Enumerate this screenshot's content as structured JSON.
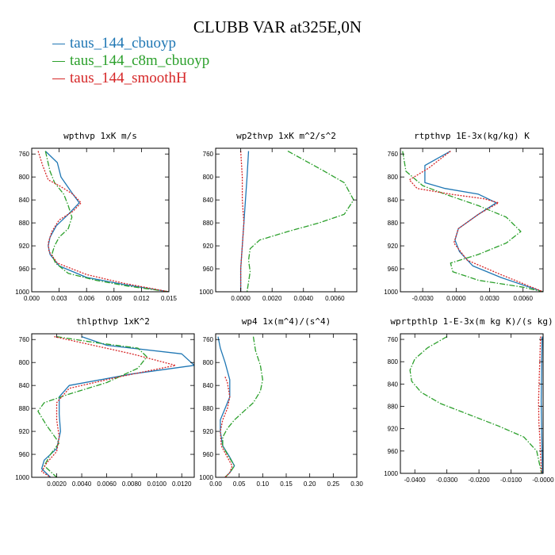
{
  "figure": {
    "title": "CLUBB VAR at325E,0N",
    "legend": [
      {
        "label": "taus_144_cbuoyp",
        "color": "#1f77b4"
      },
      {
        "label": "taus_144_c8m_cbuoyp",
        "color": "#2ca02c"
      },
      {
        "label": "taus_144_smoothH",
        "color": "#d62728"
      }
    ]
  },
  "chart_data": [
    {
      "type": "line",
      "title": "wpthvp  1xK m/s",
      "xlim": [
        0,
        0.015
      ],
      "ylim": [
        1000,
        750
      ],
      "xticks": [
        0.0,
        0.003,
        0.006,
        0.009,
        0.012,
        0.015
      ],
      "xtick_labels": [
        "0.000",
        "0.003",
        "0.006",
        "0.009",
        "0.012",
        "0.015"
      ],
      "yticks": [
        760,
        800,
        840,
        880,
        920,
        960,
        1000
      ],
      "series": [
        {
          "name": "taus_144_cbuoyp",
          "color": "#1f77b4",
          "style": "solid",
          "x": [
            0.0015,
            0.0028,
            0.0032,
            0.0045,
            0.0052,
            0.004,
            0.0027,
            0.002,
            0.0018,
            0.002,
            0.003,
            0.006,
            0.01,
            0.015
          ],
          "y": [
            755,
            775,
            800,
            830,
            845,
            865,
            885,
            905,
            920,
            935,
            955,
            975,
            987,
            1000
          ]
        },
        {
          "name": "taus_144_c8m_cbuoyp",
          "color": "#2ca02c",
          "style": "dashdot",
          "x": [
            0.0015,
            0.002,
            0.0025,
            0.0035,
            0.004,
            0.0044,
            0.004,
            0.003,
            0.0025,
            0.0022,
            0.0026,
            0.004,
            0.007,
            0.0105,
            0.015
          ],
          "y": [
            755,
            790,
            810,
            830,
            850,
            870,
            890,
            905,
            920,
            935,
            950,
            968,
            980,
            990,
            1000
          ]
        },
        {
          "name": "taus_144_smoothH",
          "color": "#d62728",
          "style": "dotted",
          "x": [
            0.0007,
            0.0012,
            0.0018,
            0.003,
            0.0045,
            0.0054,
            0.0045,
            0.003,
            0.0022,
            0.0018,
            0.0019,
            0.0028,
            0.006,
            0.01,
            0.015
          ],
          "y": [
            755,
            780,
            805,
            815,
            830,
            845,
            860,
            875,
            895,
            915,
            930,
            950,
            970,
            985,
            1000
          ]
        }
      ]
    },
    {
      "type": "line",
      "title": "wp2thvp  1xK m^2/s^2",
      "xlim": [
        -0.0016,
        0.0074
      ],
      "ylim": [
        1000,
        750
      ],
      "xticks": [
        0.0,
        0.002,
        0.004,
        0.006
      ],
      "xtick_labels": [
        "0.0000",
        "0.0020",
        "0.0040",
        "0.0060"
      ],
      "yticks": [
        760,
        800,
        840,
        880,
        920,
        960,
        1000
      ],
      "series": [
        {
          "name": "taus_144_cbuoyp",
          "color": "#1f77b4",
          "style": "solid",
          "x": [
            0.0005,
            0.0004,
            0.0003,
            0.0002,
            0.0001,
            0.0,
            0.0
          ],
          "y": [
            755,
            800,
            840,
            880,
            920,
            960,
            1000
          ]
        },
        {
          "name": "taus_144_c8m_cbuoyp",
          "color": "#2ca02c",
          "style": "dashdot",
          "x": [
            0.003,
            0.005,
            0.0066,
            0.0072,
            0.0066,
            0.005,
            0.003,
            0.0012,
            0.0006,
            0.0005,
            0.0006,
            0.0004
          ],
          "y": [
            755,
            785,
            810,
            840,
            865,
            880,
            895,
            910,
            925,
            945,
            965,
            1000
          ]
        },
        {
          "name": "taus_144_smoothH",
          "color": "#d62728",
          "style": "dotted",
          "x": [
            0.0,
            0.0001,
            0.0001,
            0.0002,
            0.0001,
            0.0,
            0.0
          ],
          "y": [
            755,
            800,
            840,
            880,
            920,
            960,
            1000
          ]
        }
      ]
    },
    {
      "type": "line",
      "title": "rtpthvp  1E-3x(kg/kg) K",
      "xlim": [
        -0.005,
        0.0078
      ],
      "ylim": [
        1000,
        750
      ],
      "xticks": [
        -0.003,
        0.0,
        0.003,
        0.006
      ],
      "xtick_labels": [
        "-0.0030",
        "0.0000",
        "0.0030",
        "0.0060"
      ],
      "yticks": [
        760,
        800,
        840,
        880,
        920,
        960,
        1000
      ],
      "series": [
        {
          "name": "taus_144_cbuoyp",
          "color": "#1f77b4",
          "style": "solid",
          "x": [
            -0.0005,
            -0.0028,
            -0.0028,
            -0.001,
            0.002,
            0.0036,
            0.002,
            0.0002,
            -0.0001,
            0.0003,
            0.0015,
            0.004,
            0.0078
          ],
          "y": [
            755,
            780,
            810,
            820,
            830,
            845,
            865,
            890,
            910,
            930,
            955,
            975,
            1000
          ]
        },
        {
          "name": "taus_144_c8m_cbuoyp",
          "color": "#2ca02c",
          "style": "dashdot",
          "x": [
            -0.0048,
            -0.0045,
            -0.003,
            -0.001,
            0.002,
            0.0045,
            0.0058,
            0.0045,
            0.002,
            -0.0005,
            -0.0003,
            0.002,
            0.006,
            0.0078
          ],
          "y": [
            755,
            790,
            815,
            830,
            850,
            870,
            895,
            915,
            935,
            950,
            965,
            980,
            992,
            1000
          ]
        },
        {
          "name": "taus_144_smoothH",
          "color": "#d62728",
          "style": "dotted",
          "x": [
            -0.0005,
            -0.0025,
            -0.0042,
            -0.0035,
            -0.0005,
            0.0025,
            0.0038,
            0.002,
            0.0002,
            -0.0002,
            0.001,
            0.004,
            0.0078
          ],
          "y": [
            755,
            785,
            805,
            820,
            830,
            838,
            845,
            865,
            890,
            915,
            945,
            970,
            1000
          ]
        }
      ]
    },
    {
      "type": "line",
      "title": "thlpthvp  1xK^2",
      "xlim": [
        0,
        0.013
      ],
      "ylim": [
        1000,
        750
      ],
      "xticks": [
        0.002,
        0.004,
        0.006,
        0.008,
        0.01,
        0.012
      ],
      "xtick_labels": [
        "0.0020",
        "0.0040",
        "0.0060",
        "0.0080",
        "0.0100",
        "0.0120"
      ],
      "yticks": [
        760,
        800,
        840,
        880,
        920,
        960,
        1000
      ],
      "series": [
        {
          "name": "taus_144_cbuoyp",
          "color": "#1f77b4",
          "style": "solid",
          "x": [
            0.004,
            0.006,
            0.012,
            0.013,
            0.008,
            0.003,
            0.0022,
            0.0022,
            0.0023,
            0.002,
            0.001,
            0.0008,
            0.0015
          ],
          "y": [
            755,
            770,
            785,
            805,
            820,
            840,
            860,
            890,
            920,
            950,
            970,
            985,
            1000
          ]
        },
        {
          "name": "taus_144_c8m_cbuoyp",
          "color": "#2ca02c",
          "style": "dashdot",
          "x": [
            0.002,
            0.005,
            0.0085,
            0.0092,
            0.0085,
            0.006,
            0.003,
            0.001,
            0.0005,
            0.0012,
            0.0022,
            0.0015,
            0.001,
            0.002
          ],
          "y": [
            755,
            765,
            775,
            790,
            810,
            835,
            855,
            870,
            885,
            910,
            940,
            960,
            980,
            1000
          ]
        },
        {
          "name": "taus_144_smoothH",
          "color": "#d62728",
          "style": "dotted",
          "x": [
            0.0018,
            0.008,
            0.0115,
            0.007,
            0.003,
            0.002,
            0.002,
            0.0022,
            0.002,
            0.0012,
            0.0008,
            0.0015
          ],
          "y": [
            755,
            785,
            805,
            825,
            845,
            870,
            900,
            930,
            955,
            975,
            990,
            1000
          ]
        }
      ]
    },
    {
      "type": "line",
      "title": "wp4  1x(m^4)/(s^4)",
      "xlim": [
        0,
        0.3
      ],
      "ylim": [
        1000,
        750
      ],
      "xticks": [
        0.0,
        0.05,
        0.1,
        0.15,
        0.2,
        0.25,
        0.3
      ],
      "xtick_labels": [
        "0.00",
        "0.05",
        "0.10",
        "0.15",
        "0.20",
        "0.25",
        "0.30"
      ],
      "yticks": [
        760,
        800,
        840,
        880,
        920,
        960,
        1000
      ],
      "series": [
        {
          "name": "taus_144_cbuoyp",
          "color": "#1f77b4",
          "style": "solid",
          "x": [
            0.005,
            0.01,
            0.02,
            0.03,
            0.03,
            0.02,
            0.01,
            0.01,
            0.015,
            0.03,
            0.04,
            0.03,
            0.02
          ],
          "y": [
            755,
            775,
            800,
            830,
            860,
            880,
            900,
            920,
            945,
            965,
            980,
            992,
            1000
          ]
        },
        {
          "name": "taus_144_c8m_cbuoyp",
          "color": "#2ca02c",
          "style": "dashdot",
          "x": [
            0.08,
            0.085,
            0.095,
            0.1,
            0.095,
            0.08,
            0.06,
            0.04,
            0.025,
            0.015,
            0.015,
            0.025,
            0.04,
            0.03,
            0.02
          ],
          "y": [
            755,
            780,
            805,
            830,
            850,
            870,
            885,
            900,
            915,
            930,
            945,
            960,
            980,
            992,
            1000
          ]
        },
        {
          "name": "taus_144_smoothH",
          "color": "#d62728",
          "style": "dotted",
          "x": [
            0.02,
            0.025,
            0.03,
            0.025,
            0.015,
            0.01,
            0.012,
            0.025,
            0.035,
            0.03,
            0.02
          ],
          "y": [
            825,
            835,
            860,
            880,
            900,
            920,
            945,
            965,
            980,
            992,
            1000
          ]
        }
      ]
    },
    {
      "type": "line",
      "title": "wprtpthlp  1-E-3x(m kg K)/(s kg)",
      "xlim": [
        -0.0445,
        0.0
      ],
      "ylim": [
        1000,
        750
      ],
      "xticks": [
        -0.04,
        -0.03,
        -0.02,
        -0.01,
        -0.0
      ],
      "xtick_labels": [
        "-0.0400",
        "-0.0300",
        "-0.0200",
        "-0.0100",
        "-0.0000"
      ],
      "yticks": [
        760,
        800,
        840,
        880,
        920,
        960,
        1000
      ],
      "series": [
        {
          "name": "taus_144_cbuoyp",
          "color": "#1f77b4",
          "style": "solid",
          "x": [
            -0.0003,
            -0.0004,
            -0.0005,
            -0.0006,
            -0.0005,
            -0.0004,
            -0.0003,
            -0.0002
          ],
          "y": [
            755,
            790,
            830,
            870,
            910,
            940,
            970,
            1000
          ]
        },
        {
          "name": "taus_144_c8m_cbuoyp",
          "color": "#2ca02c",
          "style": "dashdot",
          "x": [
            -0.03,
            -0.036,
            -0.04,
            -0.0415,
            -0.041,
            -0.038,
            -0.032,
            -0.023,
            -0.014,
            -0.006,
            -0.002,
            -0.0005
          ],
          "y": [
            755,
            775,
            795,
            815,
            835,
            855,
            875,
            895,
            915,
            935,
            960,
            1000
          ]
        },
        {
          "name": "taus_144_smoothH",
          "color": "#d62728",
          "style": "dotted",
          "x": [
            -0.0008,
            -0.001,
            -0.0012,
            -0.0014,
            -0.0013,
            -0.001,
            -0.0008,
            -0.0005
          ],
          "y": [
            755,
            790,
            830,
            870,
            910,
            940,
            970,
            1000
          ]
        }
      ]
    }
  ]
}
